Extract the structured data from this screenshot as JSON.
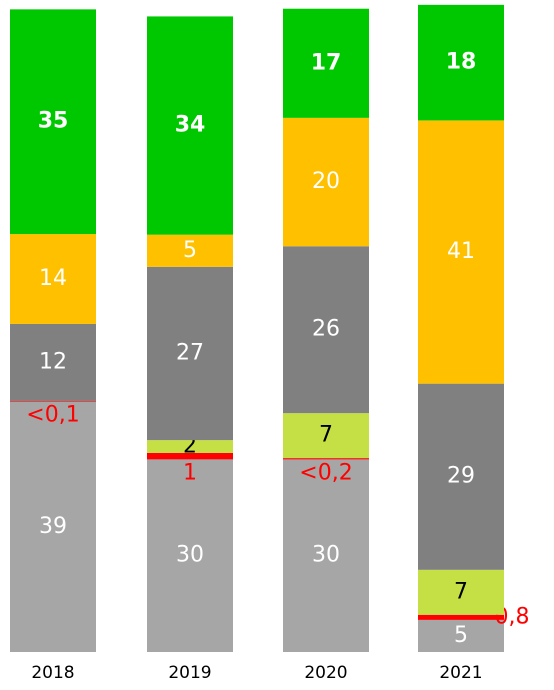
{
  "chart_data": {
    "type": "stacked_bar",
    "categories": [
      "2018",
      "2019",
      "2020",
      "2021"
    ],
    "ylim": [
      0,
      100
    ],
    "series": [
      {
        "color": "#a6a6a6",
        "values": [
          39,
          30,
          30,
          5
        ]
      },
      {
        "color": "#ff0000",
        "values": [
          0.1,
          1,
          0.2,
          0.8
        ],
        "value_labels": [
          "<0,1",
          "1",
          "<0,2",
          "0,8"
        ]
      },
      {
        "color": "#c5e044",
        "values": [
          null,
          2,
          7,
          7
        ]
      },
      {
        "color": "#808080",
        "values": [
          12,
          27,
          26,
          29
        ]
      },
      {
        "color": "#ffc000",
        "values": [
          14,
          5,
          20,
          41
        ]
      },
      {
        "color": "#00c800",
        "values": [
          35,
          34,
          17,
          18
        ]
      }
    ]
  }
}
